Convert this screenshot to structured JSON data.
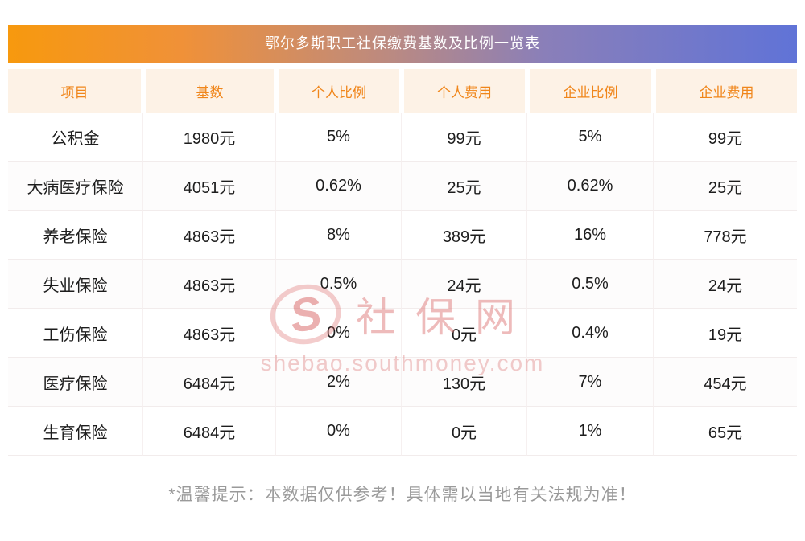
{
  "title": "鄂尔多斯职工社保缴费基数及比例一览表",
  "chart_data": {
    "type": "table",
    "title": "鄂尔多斯职工社保缴费基数及比例一览表",
    "columns": [
      "项目",
      "基数",
      "个人比例",
      "个人费用",
      "企业比例",
      "企业费用"
    ],
    "rows": [
      [
        "公积金",
        "1980元",
        "5%",
        "99元",
        "5%",
        "99元"
      ],
      [
        "大病医疗保险",
        "4051元",
        "0.62%",
        "25元",
        "0.62%",
        "25元"
      ],
      [
        "养老保险",
        "4863元",
        "8%",
        "389元",
        "16%",
        "778元"
      ],
      [
        "失业保险",
        "4863元",
        "0.5%",
        "24元",
        "0.5%",
        "24元"
      ],
      [
        "工伤保险",
        "4863元",
        "0%",
        "0元",
        "0.4%",
        "19元"
      ],
      [
        "医疗保险",
        "6484元",
        "2%",
        "130元",
        "7%",
        "454元"
      ],
      [
        "生育保险",
        "6484元",
        "0%",
        "0元",
        "1%",
        "65元"
      ]
    ]
  },
  "watermark": {
    "logo_text": "S",
    "brand": "社保网",
    "url": "shebao.southmoney.com"
  },
  "footer_note": "*温馨提示：本数据仅供参考！具体需以当地有关法规为准！",
  "colors": {
    "title_gradient_left": "#f7990e",
    "title_gradient_right": "#6073d7",
    "header_bg": "#fdf2e6",
    "header_text": "#f0861b",
    "body_text": "#1d1d1d",
    "note_text": "#9a9a9a",
    "watermark_red": "#e08484"
  }
}
